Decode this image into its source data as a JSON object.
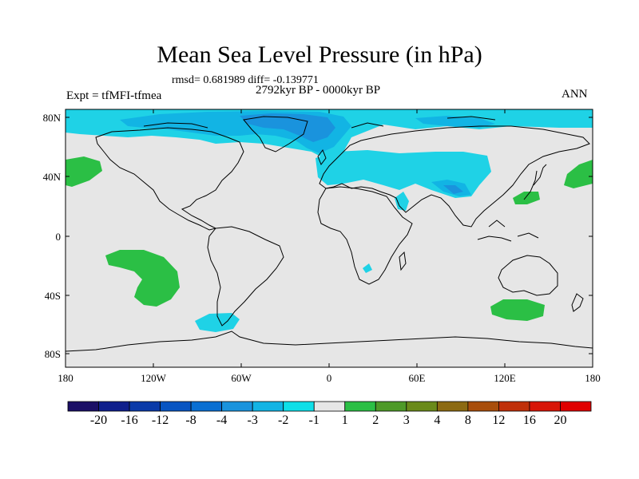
{
  "figure": {
    "title": "Mean Sea Level Pressure (in hPa)",
    "stats": "rmsd= 0.681989 diff= -0.139771",
    "period": "2792kyr BP - 0000kyr BP",
    "experiment": "Expt = tfMFI-tfmea",
    "season": "ANN"
  },
  "axes": {
    "lat_labels": [
      "80N",
      "40N",
      "0",
      "40S",
      "80S"
    ],
    "lon_labels": [
      "180",
      "120W",
      "60W",
      "0",
      "60E",
      "120E",
      "180"
    ]
  },
  "colorbar": {
    "labels": [
      "-20",
      "-16",
      "-12",
      "-8",
      "-4",
      "-3",
      "-2",
      "-1",
      "1",
      "2",
      "3",
      "4",
      "8",
      "12",
      "16",
      "20"
    ],
    "colors": [
      "#1b0f66",
      "#0f1f8c",
      "#0a3aa8",
      "#0855c2",
      "#0a6fd2",
      "#1a93dd",
      "#12b4e4",
      "#0fdfe8",
      "#e6e6e6",
      "#2bbf45",
      "#4e9a28",
      "#6a8a1a",
      "#8c6a12",
      "#a84e0c",
      "#c0300a",
      "#d81608",
      "#e00000"
    ]
  },
  "palette": {
    "background_field": "#e6e6e6",
    "band_minus_1": "#1fd2e6",
    "band_minus_2": "#12b4e4",
    "band_minus_3": "#1a93dd",
    "band_plus_1": "#2bbf45",
    "coast": "#000000"
  }
}
